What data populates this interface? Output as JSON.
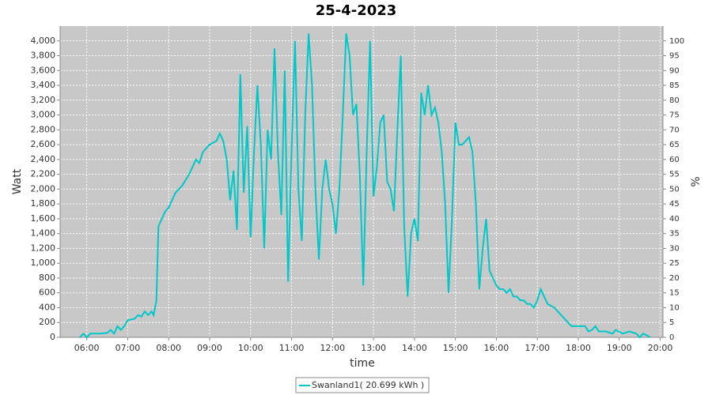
{
  "chart_data": {
    "type": "line",
    "title": "25-4-2023",
    "x_label": "time",
    "y_label": "Watt",
    "y2_label": "%",
    "x": [
      "05:50",
      "05:55",
      "06:00",
      "06:05",
      "06:20",
      "06:30",
      "06:35",
      "06:40",
      "06:45",
      "06:50",
      "06:55",
      "07:00",
      "07:10",
      "07:15",
      "07:20",
      "07:25",
      "07:30",
      "07:35",
      "07:38",
      "07:42",
      "07:45",
      "07:50",
      "07:55",
      "08:00",
      "08:10",
      "08:20",
      "08:30",
      "08:40",
      "08:45",
      "08:50",
      "09:00",
      "09:10",
      "09:15",
      "09:20",
      "09:25",
      "09:30",
      "09:35",
      "09:40",
      "09:45",
      "09:50",
      "09:55",
      "10:00",
      "10:05",
      "10:10",
      "10:15",
      "10:20",
      "10:25",
      "10:30",
      "10:35",
      "10:40",
      "10:45",
      "10:50",
      "10:55",
      "11:00",
      "11:05",
      "11:10",
      "11:15",
      "11:20",
      "11:25",
      "11:30",
      "11:35",
      "11:40",
      "11:45",
      "11:50",
      "11:55",
      "12:00",
      "12:05",
      "12:10",
      "12:15",
      "12:20",
      "12:25",
      "12:30",
      "12:35",
      "12:40",
      "12:45",
      "12:50",
      "12:55",
      "13:00",
      "13:05",
      "13:10",
      "13:15",
      "13:20",
      "13:25",
      "13:30",
      "13:35",
      "13:40",
      "13:45",
      "13:50",
      "13:55",
      "14:00",
      "14:05",
      "14:10",
      "14:15",
      "14:20",
      "14:25",
      "14:30",
      "14:35",
      "14:40",
      "14:45",
      "14:50",
      "14:55",
      "15:00",
      "15:05",
      "15:10",
      "15:15",
      "15:20",
      "15:25",
      "15:30",
      "15:35",
      "15:40",
      "15:45",
      "15:50",
      "15:55",
      "16:00",
      "16:05",
      "16:10",
      "16:15",
      "16:20",
      "16:25",
      "16:30",
      "16:35",
      "16:40",
      "16:45",
      "16:50",
      "16:55",
      "17:00",
      "17:05",
      "17:10",
      "17:15",
      "17:25",
      "17:35",
      "17:45",
      "17:50",
      "18:00",
      "18:10",
      "18:15",
      "18:20",
      "18:25",
      "18:30",
      "18:40",
      "18:50",
      "18:55",
      "19:05",
      "19:15",
      "19:25",
      "19:30",
      "19:35",
      "19:40",
      "19:45"
    ],
    "series": [
      {
        "name": "Swanland1( 20.699 kWh )",
        "color": "#00c8c8",
        "values": [
          0,
          50,
          0,
          50,
          50,
          60,
          100,
          50,
          150,
          100,
          150,
          230,
          250,
          300,
          280,
          350,
          300,
          350,
          300,
          500,
          1500,
          1600,
          1700,
          1750,
          1950,
          2050,
          2200,
          2400,
          2350,
          2500,
          2600,
          2650,
          2750,
          2650,
          2400,
          1850,
          2250,
          1450,
          3550,
          1950,
          2850,
          1350,
          2500,
          3400,
          2600,
          1200,
          2800,
          2400,
          3900,
          2500,
          1650,
          3600,
          750,
          2500,
          4000,
          2000,
          1300,
          3000,
          4100,
          3400,
          2000,
          1050,
          2000,
          2400,
          2000,
          1800,
          1400,
          2000,
          3000,
          4100,
          3800,
          3000,
          3150,
          2200,
          700,
          2500,
          4000,
          1900,
          2300,
          2900,
          3000,
          2100,
          2000,
          1700,
          2800,
          3800,
          1500,
          550,
          1400,
          1600,
          1300,
          3300,
          3000,
          3400,
          3000,
          3100,
          2900,
          2500,
          1800,
          600,
          1600,
          2900,
          2600,
          2600,
          2650,
          2700,
          2500,
          1800,
          650,
          1200,
          1600,
          900,
          800,
          700,
          650,
          650,
          600,
          650,
          550,
          550,
          500,
          500,
          450,
          450,
          400,
          500,
          650,
          550,
          450,
          400,
          300,
          200,
          150,
          150,
          150,
          80,
          100,
          150,
          80,
          80,
          50,
          100,
          50,
          80,
          50,
          0,
          50,
          30,
          0
        ]
      }
    ],
    "xlim": [
      "05:21",
      "20:04"
    ],
    "xticks": [
      "06:00",
      "07:00",
      "08:00",
      "09:00",
      "10:00",
      "11:00",
      "12:00",
      "13:00",
      "14:00",
      "15:00",
      "16:00",
      "17:00",
      "18:00",
      "19:00",
      "20:00"
    ],
    "ylim": [
      0,
      4200
    ],
    "yticks": [
      0,
      200,
      400,
      600,
      800,
      {
        "value": 1000,
        "label": "1,000"
      },
      {
        "value": 1200,
        "label": "1,200"
      },
      {
        "value": 1400,
        "label": "1,400"
      },
      {
        "value": 1600,
        "label": "1,600"
      },
      {
        "value": 1800,
        "label": "1,800"
      },
      {
        "value": 2000,
        "label": "2,000"
      },
      {
        "value": 2200,
        "label": "2,200"
      },
      {
        "value": 2400,
        "label": "2,400"
      },
      {
        "value": 2600,
        "label": "2,600"
      },
      {
        "value": 2800,
        "label": "2,800"
      },
      {
        "value": 3000,
        "label": "3,000"
      },
      {
        "value": 3200,
        "label": "3,200"
      },
      {
        "value": 3400,
        "label": "3,400"
      },
      {
        "value": 3600,
        "label": "3,600"
      },
      {
        "value": 3800,
        "label": "3,800"
      },
      {
        "value": 4000,
        "label": "4,000"
      }
    ],
    "y2lim": [
      0,
      105
    ],
    "y2ticks": [
      0,
      5,
      10,
      15,
      20,
      25,
      30,
      35,
      40,
      45,
      50,
      55,
      60,
      65,
      70,
      75,
      80,
      85,
      90,
      95,
      100
    ],
    "grid": true,
    "legend": "bottom"
  }
}
